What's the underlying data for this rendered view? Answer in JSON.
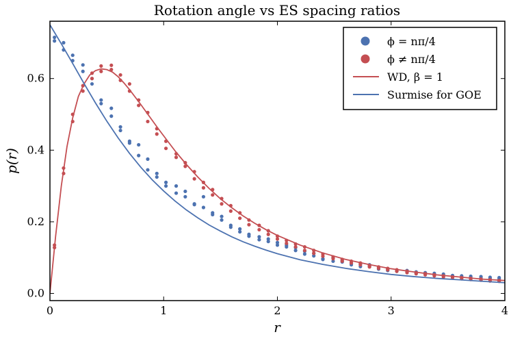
{
  "chart_data": {
    "type": "scatter",
    "title": "Rotation angle vs ES spacing ratios",
    "xlabel": "r",
    "ylabel": "p(r)",
    "xlim": [
      0,
      4
    ],
    "ylim": [
      -0.02,
      0.76
    ],
    "xticks": [
      "0",
      "1",
      "2",
      "3",
      "4"
    ],
    "yticks": [
      "0.0",
      "0.2",
      "0.4",
      "0.6"
    ],
    "legend_position": "top-right",
    "grid": false,
    "colors": {
      "blue": "#4c72b0",
      "red": "#c44e52"
    },
    "legend": [
      {
        "label": "ϕ = nπ/4",
        "kind": "marker",
        "color": "#4c72b0"
      },
      {
        "label": "ϕ ≠ nπ/4",
        "kind": "marker",
        "color": "#c44e52"
      },
      {
        "label": "WD, β = 1",
        "kind": "line",
        "color": "#c44e52"
      },
      {
        "label": "Surmise for GOE",
        "kind": "line",
        "color": "#4c72b0"
      }
    ],
    "series": [
      {
        "name": "ϕ = nπ/4",
        "kind": "scatter",
        "color": "#4c72b0",
        "points": [
          [
            0.04,
            0.715
          ],
          [
            0.04,
            0.705
          ],
          [
            0.12,
            0.7
          ],
          [
            0.12,
            0.68
          ],
          [
            0.2,
            0.665
          ],
          [
            0.2,
            0.65
          ],
          [
            0.29,
            0.638
          ],
          [
            0.29,
            0.62
          ],
          [
            0.37,
            0.6
          ],
          [
            0.37,
            0.585
          ],
          [
            0.45,
            0.54
          ],
          [
            0.45,
            0.53
          ],
          [
            0.54,
            0.517
          ],
          [
            0.54,
            0.495
          ],
          [
            0.62,
            0.465
          ],
          [
            0.62,
            0.455
          ],
          [
            0.7,
            0.425
          ],
          [
            0.7,
            0.42
          ],
          [
            0.78,
            0.415
          ],
          [
            0.78,
            0.385
          ],
          [
            0.86,
            0.375
          ],
          [
            0.86,
            0.345
          ],
          [
            0.94,
            0.335
          ],
          [
            0.94,
            0.325
          ],
          [
            1.02,
            0.31
          ],
          [
            1.02,
            0.3
          ],
          [
            1.11,
            0.3
          ],
          [
            1.11,
            0.28
          ],
          [
            1.19,
            0.285
          ],
          [
            1.19,
            0.27
          ],
          [
            1.27,
            0.25
          ],
          [
            1.27,
            0.248
          ],
          [
            1.35,
            0.27
          ],
          [
            1.35,
            0.24
          ],
          [
            1.43,
            0.225
          ],
          [
            1.43,
            0.22
          ],
          [
            1.51,
            0.215
          ],
          [
            1.51,
            0.205
          ],
          [
            1.59,
            0.19
          ],
          [
            1.59,
            0.185
          ],
          [
            1.67,
            0.18
          ],
          [
            1.67,
            0.172
          ],
          [
            1.75,
            0.165
          ],
          [
            1.75,
            0.16
          ],
          [
            1.84,
            0.158
          ],
          [
            1.84,
            0.15
          ],
          [
            1.92,
            0.152
          ],
          [
            1.92,
            0.145
          ],
          [
            2.0,
            0.142
          ],
          [
            2.0,
            0.135
          ],
          [
            2.08,
            0.135
          ],
          [
            2.08,
            0.13
          ],
          [
            2.16,
            0.128
          ],
          [
            2.16,
            0.12
          ],
          [
            2.24,
            0.118
          ],
          [
            2.24,
            0.11
          ],
          [
            2.32,
            0.112
          ],
          [
            2.32,
            0.105
          ],
          [
            2.4,
            0.097
          ],
          [
            2.4,
            0.095
          ],
          [
            2.49,
            0.1
          ],
          [
            2.49,
            0.09
          ],
          [
            2.57,
            0.092
          ],
          [
            2.57,
            0.088
          ],
          [
            2.65,
            0.085
          ],
          [
            2.65,
            0.08
          ],
          [
            2.73,
            0.082
          ],
          [
            2.73,
            0.075
          ],
          [
            2.81,
            0.08
          ],
          [
            2.81,
            0.075
          ],
          [
            2.89,
            0.072
          ],
          [
            2.89,
            0.068
          ],
          [
            2.97,
            0.068
          ],
          [
            2.97,
            0.064
          ],
          [
            3.05,
            0.065
          ],
          [
            3.05,
            0.062
          ],
          [
            3.14,
            0.064
          ],
          [
            3.14,
            0.06
          ],
          [
            3.22,
            0.06
          ],
          [
            3.22,
            0.056
          ],
          [
            3.3,
            0.058
          ],
          [
            3.3,
            0.054
          ],
          [
            3.38,
            0.056
          ],
          [
            3.38,
            0.052
          ],
          [
            3.46,
            0.054
          ],
          [
            3.46,
            0.05
          ],
          [
            3.54,
            0.05
          ],
          [
            3.54,
            0.047
          ],
          [
            3.62,
            0.049
          ],
          [
            3.62,
            0.046
          ],
          [
            3.7,
            0.048
          ],
          [
            3.7,
            0.045
          ],
          [
            3.79,
            0.047
          ],
          [
            3.79,
            0.043
          ],
          [
            3.87,
            0.045
          ],
          [
            3.87,
            0.042
          ],
          [
            3.95,
            0.044
          ],
          [
            3.95,
            0.041
          ]
        ]
      },
      {
        "name": "ϕ ≠ nπ/4",
        "kind": "scatter",
        "color": "#c44e52",
        "points": [
          [
            0.04,
            0.135
          ],
          [
            0.04,
            0.128
          ],
          [
            0.12,
            0.35
          ],
          [
            0.12,
            0.335
          ],
          [
            0.2,
            0.5
          ],
          [
            0.2,
            0.48
          ],
          [
            0.29,
            0.58
          ],
          [
            0.29,
            0.565
          ],
          [
            0.37,
            0.615
          ],
          [
            0.37,
            0.6
          ],
          [
            0.45,
            0.635
          ],
          [
            0.45,
            0.62
          ],
          [
            0.54,
            0.637
          ],
          [
            0.54,
            0.625
          ],
          [
            0.62,
            0.61
          ],
          [
            0.62,
            0.595
          ],
          [
            0.7,
            0.585
          ],
          [
            0.7,
            0.565
          ],
          [
            0.78,
            0.54
          ],
          [
            0.78,
            0.525
          ],
          [
            0.86,
            0.505
          ],
          [
            0.86,
            0.48
          ],
          [
            0.94,
            0.46
          ],
          [
            0.94,
            0.445
          ],
          [
            1.02,
            0.425
          ],
          [
            1.02,
            0.405
          ],
          [
            1.11,
            0.39
          ],
          [
            1.11,
            0.38
          ],
          [
            1.19,
            0.365
          ],
          [
            1.19,
            0.355
          ],
          [
            1.27,
            0.34
          ],
          [
            1.27,
            0.32
          ],
          [
            1.35,
            0.31
          ],
          [
            1.35,
            0.295
          ],
          [
            1.43,
            0.29
          ],
          [
            1.43,
            0.275
          ],
          [
            1.51,
            0.265
          ],
          [
            1.51,
            0.25
          ],
          [
            1.59,
            0.245
          ],
          [
            1.59,
            0.23
          ],
          [
            1.67,
            0.225
          ],
          [
            1.67,
            0.21
          ],
          [
            1.75,
            0.205
          ],
          [
            1.75,
            0.192
          ],
          [
            1.84,
            0.19
          ],
          [
            1.84,
            0.178
          ],
          [
            1.92,
            0.175
          ],
          [
            1.92,
            0.165
          ],
          [
            2.0,
            0.16
          ],
          [
            2.0,
            0.152
          ],
          [
            2.08,
            0.148
          ],
          [
            2.08,
            0.14
          ],
          [
            2.16,
            0.138
          ],
          [
            2.16,
            0.13
          ],
          [
            2.24,
            0.13
          ],
          [
            2.24,
            0.12
          ],
          [
            2.32,
            0.12
          ],
          [
            2.32,
            0.112
          ],
          [
            2.4,
            0.11
          ],
          [
            2.4,
            0.104
          ],
          [
            2.49,
            0.102
          ],
          [
            2.49,
            0.097
          ],
          [
            2.57,
            0.095
          ],
          [
            2.57,
            0.09
          ],
          [
            2.65,
            0.09
          ],
          [
            2.65,
            0.085
          ],
          [
            2.73,
            0.085
          ],
          [
            2.73,
            0.08
          ],
          [
            2.81,
            0.078
          ],
          [
            2.81,
            0.074
          ],
          [
            2.89,
            0.074
          ],
          [
            2.89,
            0.07
          ],
          [
            2.97,
            0.07
          ],
          [
            2.97,
            0.066
          ],
          [
            3.05,
            0.066
          ],
          [
            3.05,
            0.062
          ],
          [
            3.14,
            0.062
          ],
          [
            3.14,
            0.058
          ],
          [
            3.22,
            0.058
          ],
          [
            3.22,
            0.055
          ],
          [
            3.3,
            0.055
          ],
          [
            3.3,
            0.052
          ],
          [
            3.38,
            0.052
          ],
          [
            3.38,
            0.049
          ],
          [
            3.46,
            0.049
          ],
          [
            3.46,
            0.046
          ],
          [
            3.54,
            0.046
          ],
          [
            3.54,
            0.044
          ],
          [
            3.62,
            0.044
          ],
          [
            3.62,
            0.041
          ],
          [
            3.7,
            0.042
          ],
          [
            3.7,
            0.039
          ],
          [
            3.79,
            0.04
          ],
          [
            3.79,
            0.037
          ],
          [
            3.87,
            0.038
          ],
          [
            3.87,
            0.035
          ],
          [
            3.95,
            0.036
          ],
          [
            3.95,
            0.034
          ]
        ]
      },
      {
        "name": "WD, β = 1",
        "kind": "line",
        "color": "#c44e52",
        "x": [
          0,
          0.05,
          0.1,
          0.15,
          0.2,
          0.25,
          0.3,
          0.35,
          0.4,
          0.45,
          0.5,
          0.55,
          0.6,
          0.65,
          0.7,
          0.75,
          0.8,
          0.85,
          0.9,
          0.95,
          1.0,
          1.1,
          1.2,
          1.3,
          1.4,
          1.5,
          1.6,
          1.7,
          1.8,
          1.9,
          2.0,
          2.2,
          2.4,
          2.6,
          2.8,
          3.0,
          3.2,
          3.4,
          3.6,
          3.8,
          4.0
        ],
        "y": [
          0.0,
          0.16,
          0.3,
          0.41,
          0.49,
          0.55,
          0.585,
          0.61,
          0.622,
          0.627,
          0.625,
          0.618,
          0.605,
          0.588,
          0.569,
          0.548,
          0.527,
          0.505,
          0.483,
          0.461,
          0.44,
          0.398,
          0.36,
          0.325,
          0.293,
          0.264,
          0.239,
          0.216,
          0.196,
          0.178,
          0.162,
          0.135,
          0.113,
          0.095,
          0.081,
          0.069,
          0.06,
          0.052,
          0.046,
          0.04,
          0.036
        ]
      },
      {
        "name": "Surmise for GOE",
        "kind": "line",
        "color": "#4c72b0",
        "x": [
          0,
          0.1,
          0.2,
          0.3,
          0.4,
          0.5,
          0.6,
          0.7,
          0.8,
          0.9,
          1.0,
          1.1,
          1.2,
          1.3,
          1.4,
          1.5,
          1.6,
          1.7,
          1.8,
          1.9,
          2.0,
          2.2,
          2.4,
          2.6,
          2.8,
          3.0,
          3.2,
          3.4,
          3.6,
          3.8,
          4.0
        ],
        "y": [
          0.75,
          0.697,
          0.642,
          0.586,
          0.532,
          0.481,
          0.434,
          0.391,
          0.352,
          0.317,
          0.286,
          0.258,
          0.233,
          0.211,
          0.191,
          0.174,
          0.158,
          0.144,
          0.132,
          0.121,
          0.111,
          0.094,
          0.081,
          0.07,
          0.061,
          0.053,
          0.047,
          0.042,
          0.038,
          0.034,
          0.03
        ]
      }
    ]
  }
}
